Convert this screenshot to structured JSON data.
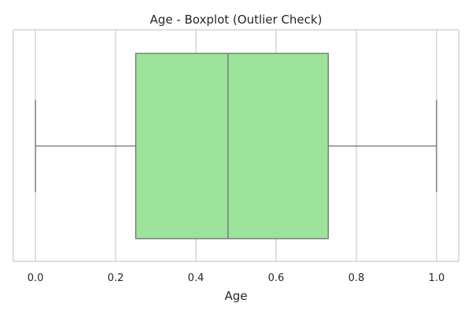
{
  "chart_data": {
    "type": "boxplot",
    "title": "Age - Boxplot (Outlier Check)",
    "xlabel": "Age",
    "ylabel": "",
    "xlim": [
      -0.055,
      1.055
    ],
    "xticks": [
      0.0,
      0.2,
      0.4,
      0.6,
      0.8,
      1.0
    ],
    "xtick_labels": [
      "0.0",
      "0.2",
      "0.4",
      "0.6",
      "0.8",
      "1.0"
    ],
    "grid": true,
    "orientation": "horizontal",
    "box": {
      "whisker_low": 0.0,
      "q1": 0.25,
      "median": 0.48,
      "q3": 0.73,
      "whisker_high": 1.0
    },
    "outliers": [],
    "colors": {
      "box_fill": "#9de39b",
      "box_edge": "#707070",
      "grid": "#cccccc",
      "frame": "#cccccc",
      "text": "#262626"
    }
  }
}
